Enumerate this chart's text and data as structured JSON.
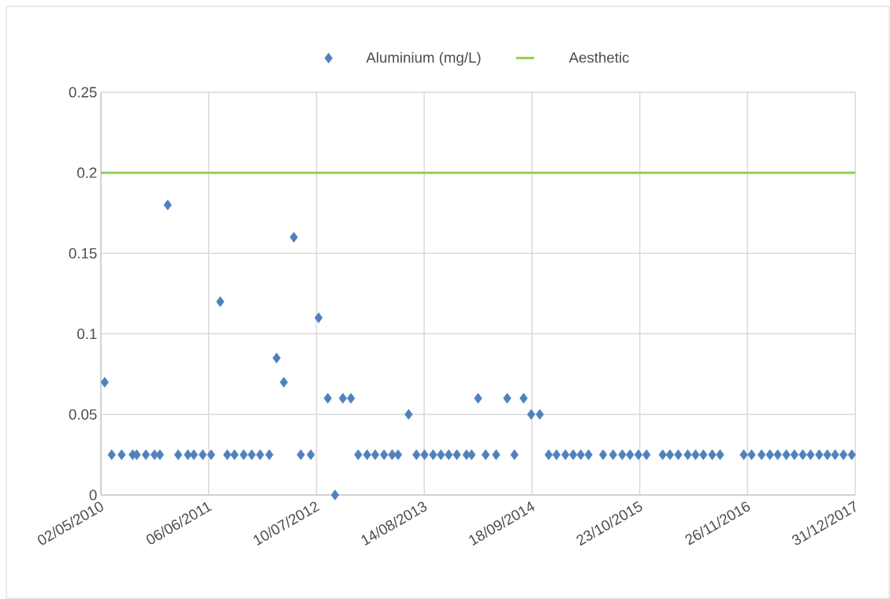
{
  "chart_data": {
    "type": "scatter",
    "xlim": [
      "2010-05-02",
      "2017-12-31"
    ],
    "ylim": [
      0,
      0.25
    ],
    "xticks": [
      {
        "value": "2010-05-02",
        "label": "02/05/2010"
      },
      {
        "value": "2011-06-06",
        "label": "06/06/2011"
      },
      {
        "value": "2012-07-10",
        "label": "10/07/2012"
      },
      {
        "value": "2013-08-14",
        "label": "14/08/2013"
      },
      {
        "value": "2014-09-18",
        "label": "18/09/2014"
      },
      {
        "value": "2015-10-23",
        "label": "23/10/2015"
      },
      {
        "value": "2016-11-26",
        "label": "26/11/2016"
      },
      {
        "value": "2017-12-31",
        "label": "31/12/2017"
      }
    ],
    "yticks": [
      0,
      0.05,
      0.1,
      0.15,
      0.2,
      0.25
    ],
    "grid": true,
    "legend": "top",
    "series": [
      {
        "name": "Aluminium (mg/L)",
        "marker": "diamond",
        "color": "#4f81bd",
        "x": [
          "2010-05-16",
          "2010-06-11",
          "2010-07-18",
          "2010-08-28",
          "2010-09-12",
          "2010-10-16",
          "2010-11-17",
          "2010-12-07",
          "2011-01-05",
          "2011-02-13",
          "2011-03-21",
          "2011-04-12",
          "2011-05-15",
          "2011-06-15",
          "2011-07-19",
          "2011-08-14",
          "2011-09-10",
          "2011-10-14",
          "2011-11-13",
          "2011-12-14",
          "2012-01-17",
          "2012-02-13",
          "2012-03-11",
          "2012-04-17",
          "2012-05-13",
          "2012-06-19",
          "2012-07-18",
          "2012-08-21",
          "2012-09-17",
          "2012-10-16",
          "2012-11-15",
          "2012-12-12",
          "2013-01-14",
          "2013-02-13",
          "2013-03-18",
          "2013-04-17",
          "2013-05-09",
          "2013-06-17",
          "2013-07-16",
          "2013-08-15",
          "2013-09-16",
          "2013-10-15",
          "2013-11-13",
          "2013-12-13",
          "2014-01-18",
          "2014-02-06",
          "2014-03-02",
          "2014-03-30",
          "2014-05-08",
          "2014-06-18",
          "2014-07-15",
          "2014-08-18",
          "2014-09-15",
          "2014-10-17",
          "2014-11-19",
          "2014-12-18",
          "2015-01-20",
          "2015-02-18",
          "2015-03-18",
          "2015-04-16",
          "2015-06-09",
          "2015-07-16",
          "2015-08-19",
          "2015-09-17",
          "2015-10-18",
          "2015-11-17",
          "2016-01-16",
          "2016-02-12",
          "2016-03-14",
          "2016-04-18",
          "2016-05-17",
          "2016-06-15",
          "2016-07-18",
          "2016-08-16",
          "2016-11-12",
          "2016-12-11",
          "2017-01-17",
          "2017-02-17",
          "2017-03-18",
          "2017-04-19",
          "2017-05-19",
          "2017-06-19",
          "2017-07-18",
          "2017-08-19",
          "2017-09-18",
          "2017-10-17",
          "2017-11-17",
          "2017-12-18"
        ],
        "values": [
          0.07,
          0.025,
          0.025,
          0.025,
          0.025,
          0.025,
          0.025,
          0.025,
          0.18,
          0.025,
          0.025,
          0.025,
          0.025,
          0.025,
          0.12,
          0.025,
          0.025,
          0.025,
          0.025,
          0.025,
          0.025,
          0.085,
          0.07,
          0.16,
          0.025,
          0.025,
          0.11,
          0.06,
          0,
          0.06,
          0.06,
          0.025,
          0.025,
          0.025,
          0.025,
          0.025,
          0.025,
          0.05,
          0.025,
          0.025,
          0.025,
          0.025,
          0.025,
          0.025,
          0.025,
          0.025,
          0.06,
          0.025,
          0.025,
          0.06,
          0.025,
          0.06,
          0.05,
          0.05,
          0.025,
          0.025,
          0.025,
          0.025,
          0.025,
          0.025,
          0.025,
          0.025,
          0.025,
          0.025,
          0.025,
          0.025,
          0.025,
          0.025,
          0.025,
          0.025,
          0.025,
          0.025,
          0.025,
          0.025,
          0.025,
          0.025,
          0.025,
          0.025,
          0.025,
          0.025,
          0.025,
          0.025,
          0.025,
          0.025,
          0.025,
          0.025,
          0.025,
          0.025
        ]
      },
      {
        "name": "Aesthetic",
        "type": "line",
        "marker": "none",
        "line_style": "solid",
        "color": "#92d050",
        "x": [
          "2010-05-02",
          "2017-12-31"
        ],
        "values": [
          0.2,
          0.2
        ]
      }
    ]
  }
}
